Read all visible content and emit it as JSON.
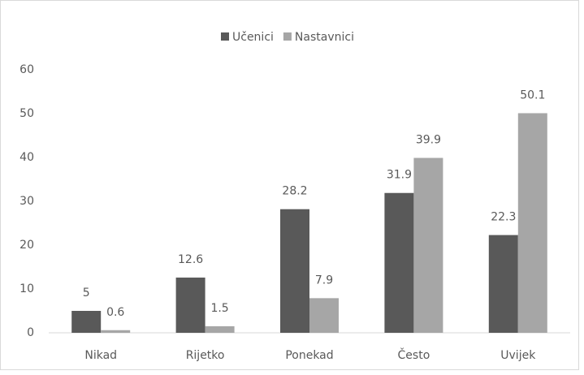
{
  "chart_data": {
    "type": "bar",
    "categories": [
      "Nikad",
      "Rijetko",
      "Ponekad",
      "Često",
      "Uvijek"
    ],
    "series": [
      {
        "name": "Učenici",
        "color": "#595959",
        "values": [
          5,
          12.6,
          28.2,
          31.9,
          22.3
        ]
      },
      {
        "name": "Nastavnici",
        "color": "#a6a6a6",
        "values": [
          0.6,
          1.5,
          7.9,
          39.9,
          50.1
        ]
      }
    ],
    "ylim": [
      0,
      60
    ],
    "yticks": [
      0,
      10,
      20,
      30,
      40,
      50,
      60
    ],
    "grid": false,
    "legend": "top"
  }
}
